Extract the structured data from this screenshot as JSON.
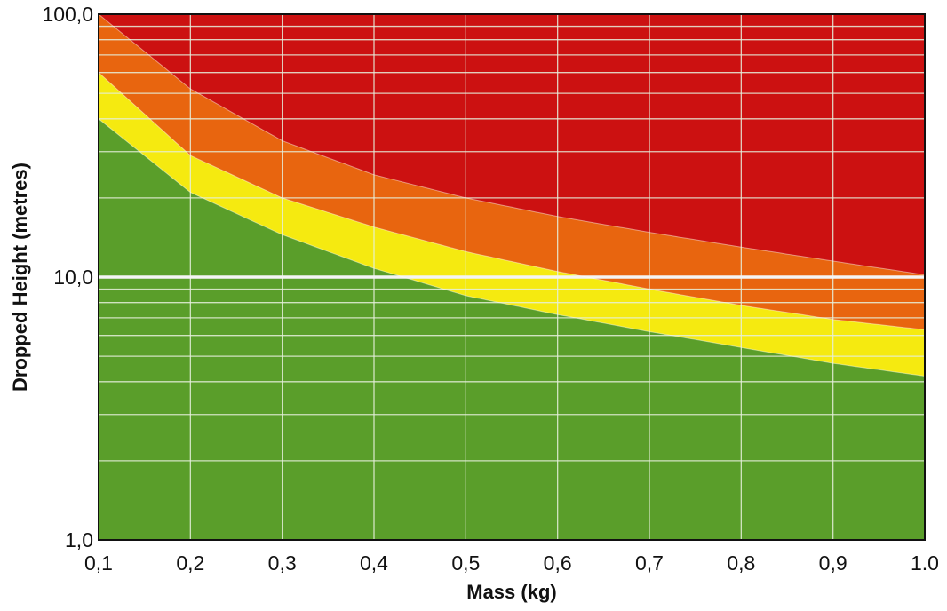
{
  "chart_data": {
    "type": "area",
    "xlabel": "Mass (kg)",
    "ylabel": "Dropped Height (metres)",
    "x_scale": "linear",
    "y_scale": "log",
    "xlim": [
      0.1,
      1.0
    ],
    "ylim": [
      1.0,
      100.0
    ],
    "x_ticks": [
      0.1,
      0.2,
      0.3,
      0.4,
      0.5,
      0.6,
      0.7,
      0.8,
      0.9,
      1.0
    ],
    "x_tick_labels": [
      "0,1",
      "0,2",
      "0,3",
      "0,4",
      "0,5",
      "0,6",
      "0,7",
      "0,8",
      "0,9",
      "1.0"
    ],
    "y_ticks": [
      1.0,
      10.0,
      100.0
    ],
    "y_tick_labels": [
      "1,0",
      "10,0",
      "100,0"
    ],
    "grid": true,
    "zones": [
      {
        "color": "#5a9e2a",
        "upper_boundary": null
      },
      {
        "color": "#f5ea10",
        "upper_boundary": null
      },
      {
        "color": "#e8650f",
        "upper_boundary": null
      },
      {
        "color": "#cc1111",
        "upper_boundary": null
      }
    ],
    "boundaries": [
      {
        "x": [
          0.1,
          0.2,
          0.3,
          0.4,
          0.5,
          0.6,
          0.7,
          0.8,
          0.9,
          1.0
        ],
        "y": [
          40.0,
          21.0,
          14.5,
          10.8,
          8.5,
          7.2,
          6.2,
          5.4,
          4.7,
          4.2
        ]
      },
      {
        "x": [
          0.1,
          0.2,
          0.3,
          0.4,
          0.5,
          0.6,
          0.7,
          0.8,
          0.9,
          1.0
        ],
        "y": [
          60.0,
          29.0,
          20.0,
          15.5,
          12.5,
          10.5,
          9.0,
          7.8,
          6.9,
          6.3
        ]
      },
      {
        "x": [
          0.1,
          0.2,
          0.3,
          0.4,
          0.5,
          0.6,
          0.7,
          0.8,
          0.9,
          1.0
        ],
        "y": [
          100.0,
          52.0,
          33.0,
          24.5,
          20.0,
          17.0,
          14.8,
          13.0,
          11.5,
          10.2
        ]
      }
    ],
    "colors": {
      "green": "#5a9e2a",
      "yellow": "#f5ea10",
      "orange": "#e8650f",
      "red": "#cc1111",
      "grid": "#e6f0dc",
      "ref_line": "#f4f4f4",
      "frame": "#111111"
    }
  }
}
